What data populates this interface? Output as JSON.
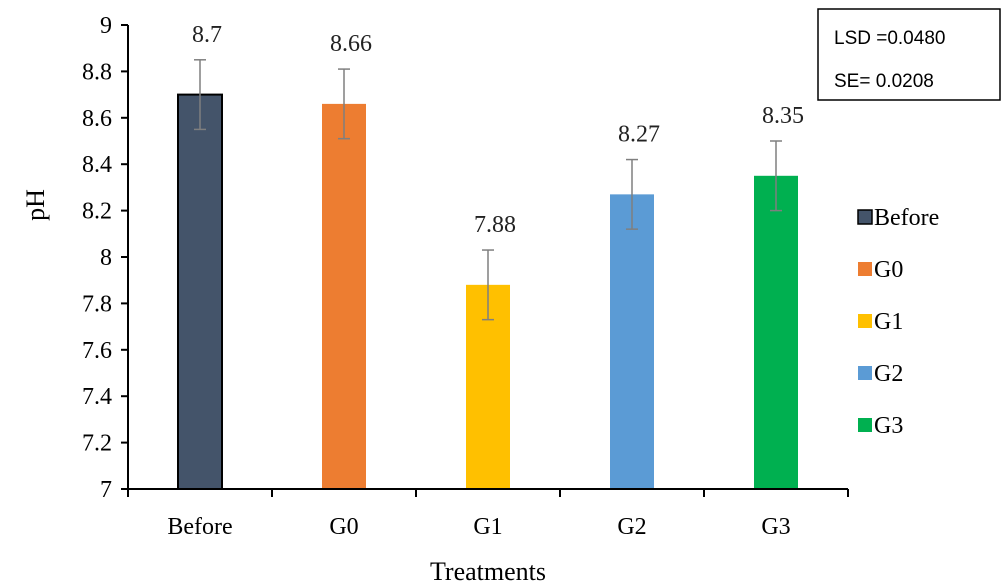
{
  "chart_data": {
    "type": "bar",
    "categories": [
      "Before",
      "G0",
      "G1",
      "G2",
      "G3"
    ],
    "values": [
      8.7,
      8.66,
      7.88,
      8.27,
      8.35
    ],
    "data_labels": [
      "8.7",
      "8.66",
      "7.88",
      "8.27",
      "8.35"
    ],
    "error": [
      0.15,
      0.15,
      0.15,
      0.15,
      0.15
    ],
    "colors": [
      "#44546a",
      "#ed7d31",
      "#ffc000",
      "#5b9bd5",
      "#00b050"
    ],
    "xlabel": "Treatments",
    "ylabel": "pH",
    "ylim": [
      7,
      9
    ],
    "yticks": [
      7,
      7.2,
      7.4,
      7.6,
      7.8,
      8,
      8.2,
      8.4,
      8.6,
      8.8,
      9
    ],
    "ytick_labels": [
      "7",
      "7.2",
      "7.4",
      "7.6",
      "7.8",
      "8",
      "8.2",
      "8.4",
      "8.6",
      "8.8",
      "9"
    ],
    "grid": false,
    "legend": {
      "placement": "right",
      "entries": [
        "Before",
        "G0",
        "G1",
        "G2",
        "G3"
      ]
    },
    "annotations": {
      "lsd": "LSD =0.0480",
      "se": "SE= 0.0208"
    }
  }
}
